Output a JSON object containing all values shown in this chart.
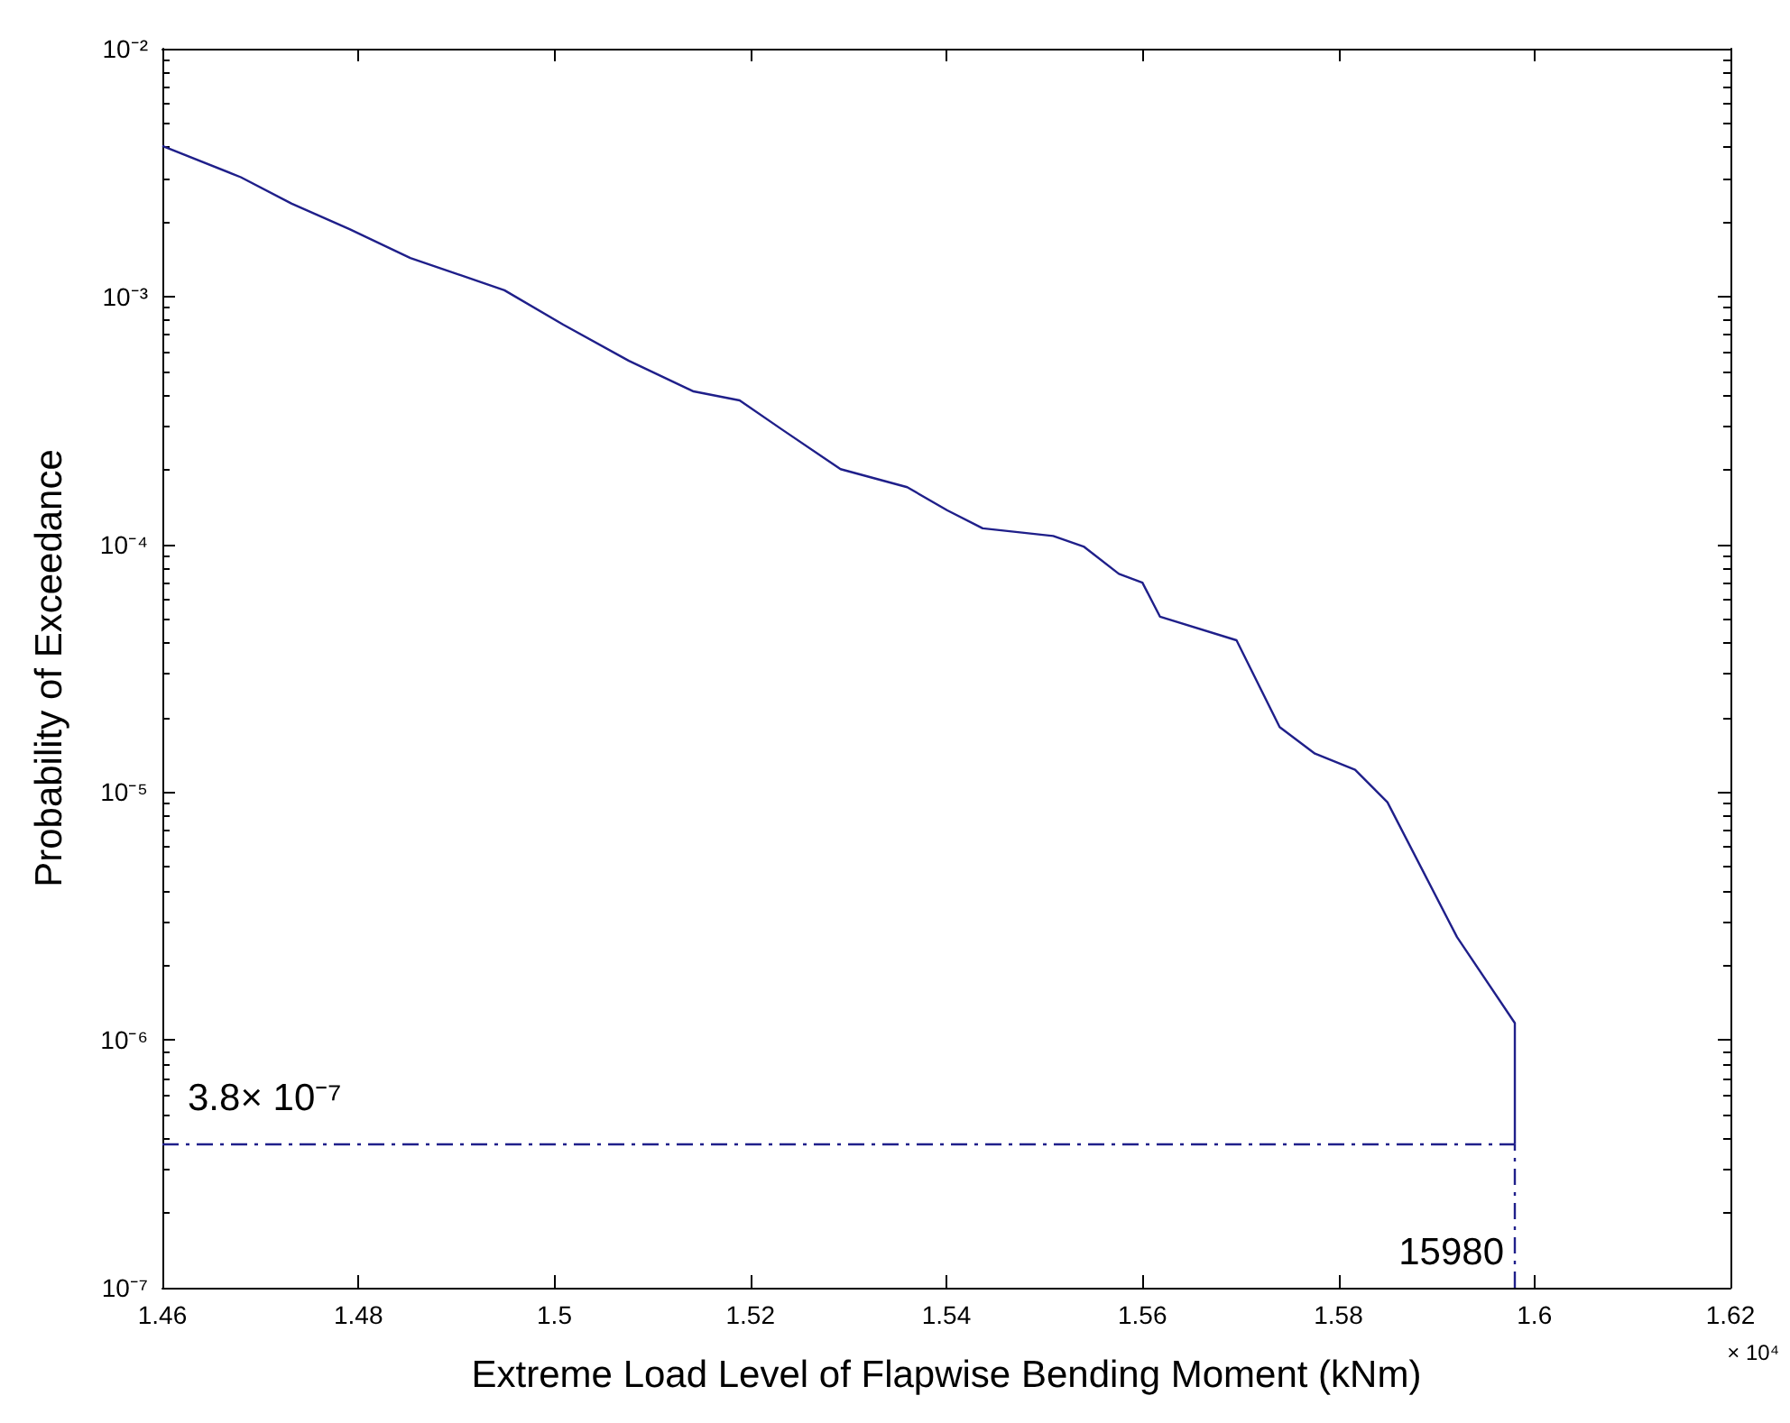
{
  "chart_data": {
    "type": "line",
    "xlabel": "Extreme Load Level of Flapwise Bending Moment (kNm)",
    "ylabel": "Probability of Exceedance",
    "x": [
      1.46,
      1.468,
      1.4732,
      1.4791,
      1.4853,
      1.4949,
      1.5009,
      1.5076,
      1.5142,
      1.5189,
      1.5232,
      1.5292,
      1.536,
      1.5401,
      1.5437,
      1.5509,
      1.554,
      1.5576,
      1.56,
      1.5618,
      1.5696,
      1.574,
      1.5776,
      1.5817,
      1.585,
      1.5921,
      1.598,
      1.598
    ],
    "series": [
      {
        "color": "#1f1f8a",
        "values": [
          0.00405,
          0.00303,
          0.00237,
          0.00187,
          0.00143,
          0.00106,
          0.00077,
          0.00055,
          0.000414,
          0.000381,
          0.000291,
          0.000201,
          0.00017,
          0.000137,
          0.000116,
          0.000108,
          9.8e-05,
          7.6e-05,
          7e-05,
          5.1e-05,
          4.1e-05,
          1.83e-05,
          1.43e-05,
          1.23e-05,
          9.1e-06,
          2.6e-06,
          1.17e-06,
          3.8e-07
        ]
      }
    ],
    "xlim": [
      1.46,
      1.62
    ],
    "xticks": [
      1.46,
      1.48,
      1.5,
      1.52,
      1.54,
      1.56,
      1.58,
      1.6,
      1.62
    ],
    "ylim": [
      1e-07,
      0.01
    ],
    "yticks": [
      {
        "value": 1e-07,
        "label": "10⁻⁷"
      },
      {
        "value": 1e-06,
        "label": "10⁻⁶"
      },
      {
        "value": 1e-05,
        "label": "10⁻⁵"
      },
      {
        "value": 0.0001,
        "label": "10⁻⁴"
      },
      {
        "value": 0.001,
        "label": "10⁻³"
      },
      {
        "value": 0.01,
        "label": "10⁻²"
      }
    ],
    "log": "y",
    "grid": false,
    "marker": "none",
    "line_style": "solid",
    "ref_lines": [
      {
        "axis": "y",
        "value": 3.8e-07,
        "label": "3.8× 10⁻⁷",
        "color": "#1f1f8a",
        "line_style": "dashed"
      },
      {
        "axis": "x",
        "value": 1.598,
        "color": "#1f1f8a",
        "line_style": "dashed"
      }
    ],
    "annotations": [
      "× 10⁴",
      "15980"
    ]
  }
}
